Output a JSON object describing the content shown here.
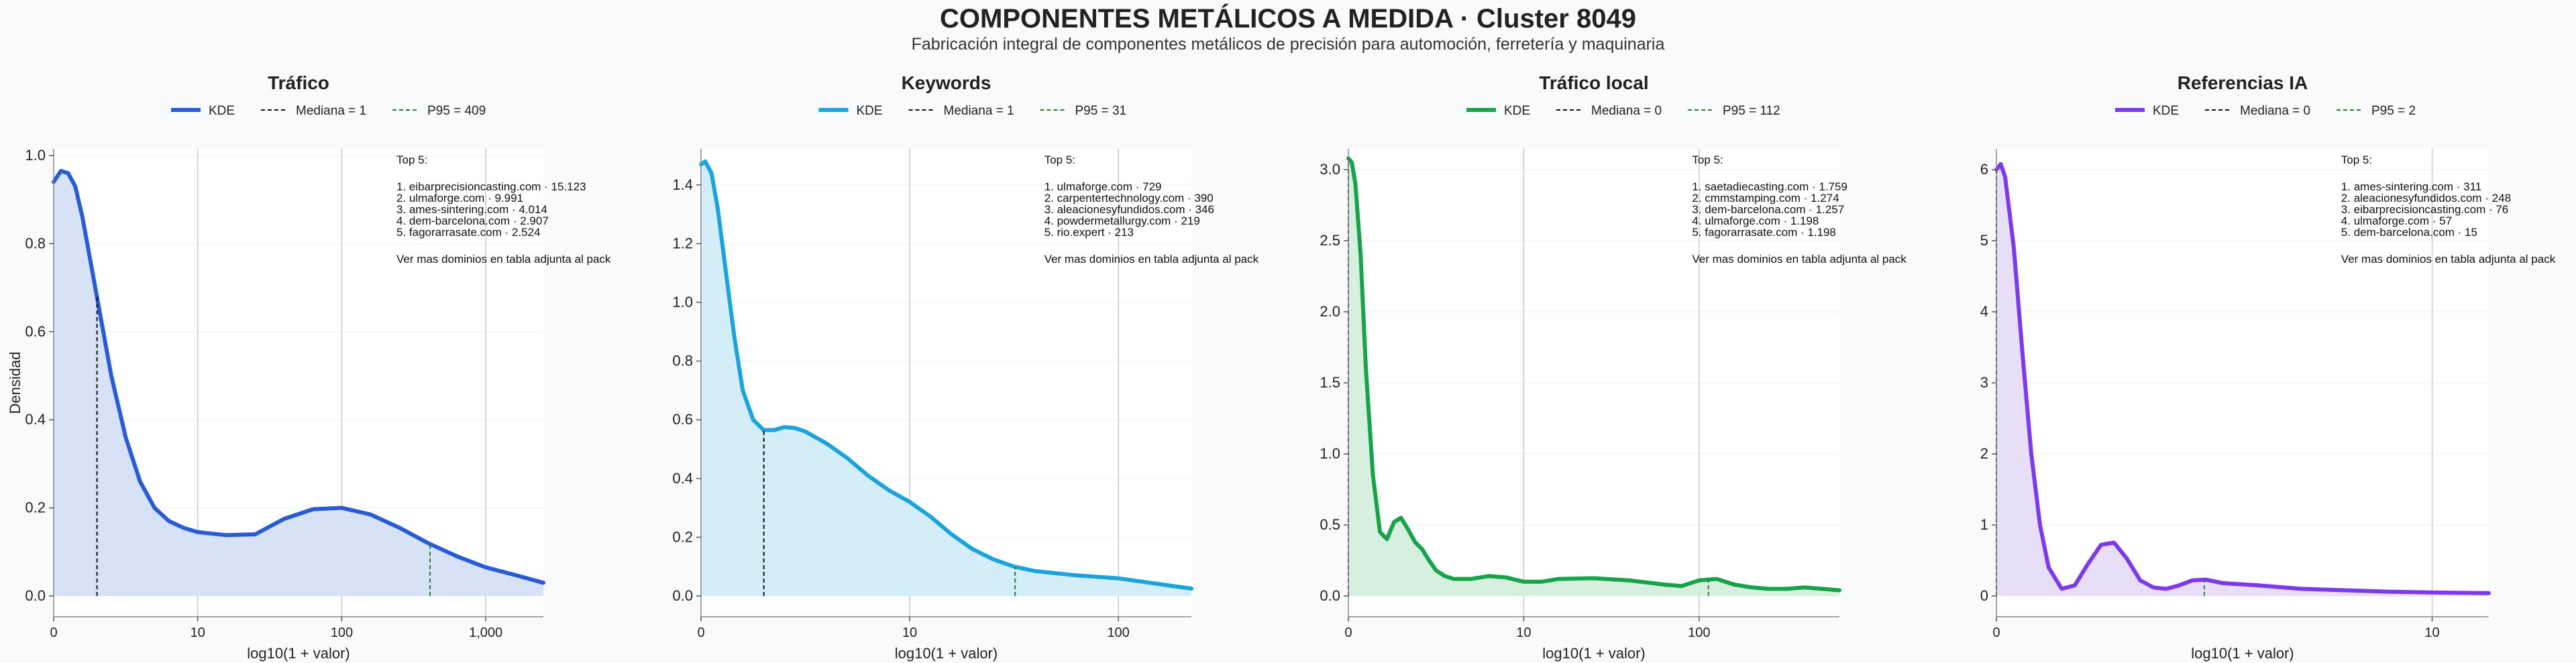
{
  "page": {
    "title": "COMPONENTES METÁLICOS A MEDIDA · Cluster 8049",
    "subtitle": "Fabricación integral de componentes metálicos de precisión para automoción, ferretería y maquinaria"
  },
  "chart_data": [
    {
      "type": "area",
      "title": "Tráfico",
      "xlabel": "log10(1 + valor)",
      "ylabel": "Densidad",
      "color": "#2a5bd7",
      "fill": "#d6e0f7",
      "xlim": [
        0,
        3.4
      ],
      "ylim": [
        0,
        1.0
      ],
      "xticks": [
        {
          "v": 0,
          "label": "0"
        },
        {
          "v": 1,
          "label": "10"
        },
        {
          "v": 2,
          "label": "100"
        },
        {
          "v": 3,
          "label": "1,000"
        }
      ],
      "yticks": [
        {
          "v": 0,
          "label": "0.0"
        },
        {
          "v": 0.2,
          "label": "0.2"
        },
        {
          "v": 0.4,
          "label": "0.4"
        },
        {
          "v": 0.6,
          "label": "0.6"
        },
        {
          "v": 0.8,
          "label": "0.8"
        },
        {
          "v": 1.0,
          "label": "1.0"
        }
      ],
      "legend": {
        "kde": "KDE",
        "median": "Mediana = 1",
        "p95": "P95 = 409"
      },
      "median_x": 0.301,
      "p95_x": 2.613,
      "x": [
        0,
        0.05,
        0.1,
        0.15,
        0.2,
        0.3,
        0.4,
        0.5,
        0.6,
        0.7,
        0.8,
        0.9,
        1.0,
        1.2,
        1.4,
        1.6,
        1.8,
        2.0,
        2.2,
        2.4,
        2.6,
        2.8,
        3.0,
        3.2,
        3.4
      ],
      "y": [
        0.94,
        0.965,
        0.96,
        0.93,
        0.86,
        0.68,
        0.5,
        0.36,
        0.26,
        0.2,
        0.17,
        0.155,
        0.145,
        0.138,
        0.14,
        0.175,
        0.197,
        0.2,
        0.185,
        0.155,
        0.12,
        0.09,
        0.065,
        0.048,
        0.03
      ],
      "top5": {
        "heading": "Top 5:",
        "items": [
          "1. eibarprecisioncasting.com · 15.123",
          "2. ulmaforge.com · 9.991",
          "3. ames-sintering.com · 4.014",
          "4. dem-barcelona.com · 2.907",
          "5. fagorarrasate.com · 2.524"
        ],
        "footer": "Ver mas dominios en tabla adjunta al pack"
      }
    },
    {
      "type": "area",
      "title": "Keywords",
      "xlabel": "log10(1 + valor)",
      "ylabel": "",
      "color": "#1ba3dd",
      "fill": "#d2edf9",
      "xlim": [
        0,
        2.35
      ],
      "ylim": [
        0,
        1.5
      ],
      "xticks": [
        {
          "v": 0,
          "label": "0"
        },
        {
          "v": 1,
          "label": "10"
        },
        {
          "v": 2,
          "label": "100"
        }
      ],
      "yticks": [
        {
          "v": 0,
          "label": "0.0"
        },
        {
          "v": 0.2,
          "label": "0.2"
        },
        {
          "v": 0.4,
          "label": "0.4"
        },
        {
          "v": 0.6,
          "label": "0.6"
        },
        {
          "v": 0.8,
          "label": "0.8"
        },
        {
          "v": 1.0,
          "label": "1.0"
        },
        {
          "v": 1.2,
          "label": "1.2"
        },
        {
          "v": 1.4,
          "label": "1.4"
        }
      ],
      "legend": {
        "kde": "KDE",
        "median": "Mediana = 1",
        "p95": "P95 = 31"
      },
      "median_x": 0.301,
      "p95_x": 1.505,
      "x": [
        0,
        0.02,
        0.05,
        0.08,
        0.12,
        0.16,
        0.2,
        0.25,
        0.3,
        0.35,
        0.4,
        0.45,
        0.5,
        0.6,
        0.7,
        0.8,
        0.9,
        1.0,
        1.1,
        1.2,
        1.3,
        1.4,
        1.5,
        1.6,
        1.8,
        2.0,
        2.2,
        2.35
      ],
      "y": [
        1.47,
        1.48,
        1.44,
        1.32,
        1.1,
        0.88,
        0.7,
        0.6,
        0.565,
        0.565,
        0.575,
        0.572,
        0.56,
        0.52,
        0.47,
        0.41,
        0.36,
        0.32,
        0.27,
        0.21,
        0.16,
        0.125,
        0.1,
        0.085,
        0.07,
        0.06,
        0.04,
        0.025
      ],
      "top5": {
        "heading": "Top 5:",
        "items": [
          "1. ulmaforge.com · 729",
          "2. carpentertechnology.com · 390",
          "3. aleacionesyfundidos.com · 346",
          "4. powdermetallurgy.com · 219",
          "5. rio.expert · 213"
        ],
        "footer": "Ver mas dominios en tabla adjunta al pack"
      }
    },
    {
      "type": "area",
      "title": "Tráfico local",
      "xlabel": "log10(1 + valor)",
      "ylabel": "",
      "color": "#16a34a",
      "fill": "#d4eedc",
      "xlim": [
        0,
        2.8
      ],
      "ylim": [
        0,
        3.1
      ],
      "xticks": [
        {
          "v": 0,
          "label": "0"
        },
        {
          "v": 1,
          "label": "10"
        },
        {
          "v": 2,
          "label": "100"
        }
      ],
      "yticks": [
        {
          "v": 0,
          "label": "0.0"
        },
        {
          "v": 0.5,
          "label": "0.5"
        },
        {
          "v": 1.0,
          "label": "1.0"
        },
        {
          "v": 1.5,
          "label": "1.5"
        },
        {
          "v": 2.0,
          "label": "2.0"
        },
        {
          "v": 2.5,
          "label": "2.5"
        },
        {
          "v": 3.0,
          "label": "3.0"
        }
      ],
      "legend": {
        "kde": "KDE",
        "median": "Mediana = 0",
        "p95": "P95 = 112"
      },
      "median_x": 0,
      "p95_x": 2.053,
      "x": [
        0,
        0.02,
        0.04,
        0.07,
        0.1,
        0.14,
        0.18,
        0.22,
        0.26,
        0.3,
        0.34,
        0.38,
        0.42,
        0.46,
        0.5,
        0.55,
        0.6,
        0.7,
        0.8,
        0.9,
        1.0,
        1.1,
        1.2,
        1.4,
        1.6,
        1.8,
        1.9,
        2.0,
        2.1,
        2.2,
        2.3,
        2.4,
        2.5,
        2.6,
        2.8
      ],
      "y": [
        3.08,
        3.05,
        2.9,
        2.4,
        1.6,
        0.85,
        0.45,
        0.4,
        0.52,
        0.55,
        0.47,
        0.38,
        0.33,
        0.25,
        0.18,
        0.14,
        0.12,
        0.12,
        0.14,
        0.13,
        0.1,
        0.1,
        0.12,
        0.125,
        0.11,
        0.08,
        0.07,
        0.11,
        0.12,
        0.08,
        0.06,
        0.05,
        0.05,
        0.06,
        0.04
      ],
      "top5": {
        "heading": "Top 5:",
        "items": [
          "1. saetadiecasting.com · 1.759",
          "2. cmmstamping.com · 1.274",
          "3. dem-barcelona.com · 1.257",
          "4. ulmaforge.com · 1.198",
          "5. fagorarrasate.com · 1.198"
        ],
        "footer": "Ver mas dominios en tabla adjunta al pack"
      }
    },
    {
      "type": "area",
      "title": "Referencias IA",
      "xlabel": "log10(1 + valor)",
      "ylabel": "",
      "color": "#7c3aed",
      "fill": "#e7dcf8",
      "xlim": [
        0,
        1.13
      ],
      "ylim": [
        0,
        6.2
      ],
      "xticks": [
        {
          "v": 0,
          "label": "0"
        },
        {
          "v": 1,
          "label": "10"
        }
      ],
      "yticks": [
        {
          "v": 0,
          "label": "0"
        },
        {
          "v": 1,
          "label": "1"
        },
        {
          "v": 2,
          "label": "2"
        },
        {
          "v": 3,
          "label": "3"
        },
        {
          "v": 4,
          "label": "4"
        },
        {
          "v": 5,
          "label": "5"
        },
        {
          "v": 6,
          "label": "6"
        }
      ],
      "legend": {
        "kde": "KDE",
        "median": "Mediana = 0",
        "p95": "P95 = 2"
      },
      "median_x": 0,
      "p95_x": 0.477,
      "x": [
        0,
        0.01,
        0.02,
        0.04,
        0.06,
        0.08,
        0.1,
        0.12,
        0.15,
        0.18,
        0.21,
        0.24,
        0.27,
        0.3,
        0.33,
        0.36,
        0.39,
        0.42,
        0.45,
        0.48,
        0.52,
        0.6,
        0.7,
        0.8,
        0.9,
        1.0,
        1.13
      ],
      "y": [
        6.0,
        6.08,
        5.9,
        4.9,
        3.4,
        2.0,
        1.0,
        0.4,
        0.1,
        0.15,
        0.45,
        0.72,
        0.75,
        0.52,
        0.22,
        0.12,
        0.1,
        0.15,
        0.22,
        0.23,
        0.18,
        0.15,
        0.1,
        0.08,
        0.06,
        0.05,
        0.04
      ],
      "top5": {
        "heading": "Top 5:",
        "items": [
          "1. ames-sintering.com · 311",
          "2. aleacionesyfundidos.com · 248",
          "3. eibarprecisioncasting.com · 76",
          "4. ulmaforge.com · 57",
          "5. dem-barcelona.com · 15"
        ],
        "footer": "Ver mas dominios en tabla adjunta al pack"
      }
    }
  ]
}
